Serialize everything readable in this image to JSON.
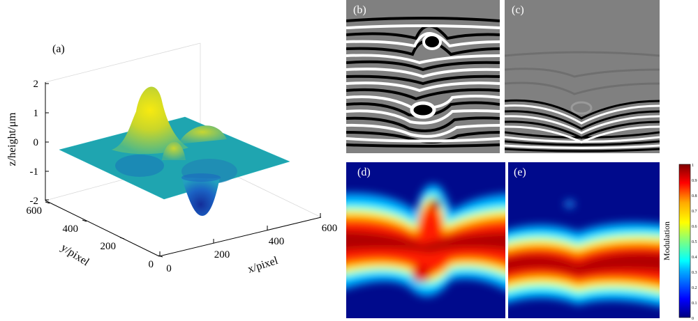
{
  "figure": {
    "panel_labels": {
      "a": "(a)",
      "b": "(b)",
      "c": "(c)",
      "d": "(d)",
      "e": "(e)"
    }
  },
  "surface_plot": {
    "z_label": "z/height/μm",
    "y_label": "y/pixel",
    "x_label": "x/pixel",
    "z_ticks": [
      "2",
      "1",
      "0",
      "-1",
      "-2"
    ],
    "y_ticks": [
      "600",
      "400",
      "200",
      "0"
    ],
    "x_ticks": [
      "0",
      "200",
      "400",
      "600"
    ]
  },
  "colorbar": {
    "label": "Modulation",
    "ticks": [
      "1",
      "0.9",
      "0.8",
      "0.7",
      "0.6",
      "0.5",
      "0.4",
      "0.3",
      "0.2",
      "0.1",
      "0"
    ],
    "colormap": [
      "#00007f",
      "#0000ff",
      "#00aaff",
      "#00ffff",
      "#7fff7f",
      "#ffff00",
      "#ffaa00",
      "#ff0000",
      "#7f0000"
    ]
  },
  "colors": {
    "fringe_bg": "#808080",
    "mod_bg": "#000a8c",
    "surface_flat": "#1fa5b0"
  }
}
